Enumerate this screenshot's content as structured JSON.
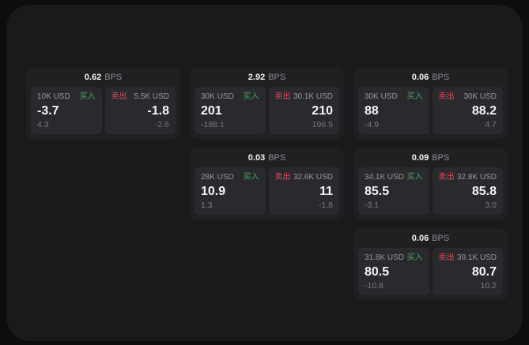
{
  "palette": {
    "page_background": "#0d0d0e",
    "window_background": "#1a1a1c",
    "card_background": "#202023",
    "panel_background": "#2a2a2e",
    "buy_green": "#3cab5f",
    "sell_red": "#de4d5e"
  },
  "cards": [
    {
      "row": 1,
      "col": 1,
      "bps_value": "0.62",
      "bps_unit": "BPS",
      "buy": {
        "amount": "10K USD",
        "side_label": "买入",
        "value": "-3.7",
        "sub_value": "4.3"
      },
      "sell": {
        "amount": "5.5K USD",
        "side_label": "卖出",
        "value": "-1.8",
        "sub_value": "-2.6"
      }
    },
    {
      "row": 1,
      "col": 2,
      "bps_value": "2.92",
      "bps_unit": "BPS",
      "buy": {
        "amount": "30K USD",
        "side_label": "买入",
        "value": "201",
        "sub_value": "-188.1"
      },
      "sell": {
        "amount": "30.1K USD",
        "side_label": "卖出",
        "value": "210",
        "sub_value": "196.5"
      }
    },
    {
      "row": 1,
      "col": 3,
      "bps_value": "0.06",
      "bps_unit": "BPS",
      "buy": {
        "amount": "30K USD",
        "side_label": "买入",
        "value": "88",
        "sub_value": "-4.9"
      },
      "sell": {
        "amount": "30K USD",
        "side_label": "卖出",
        "value": "88.2",
        "sub_value": "4.7"
      }
    },
    {
      "row": 2,
      "col": 2,
      "bps_value": "0.03",
      "bps_unit": "BPS",
      "buy": {
        "amount": "28K USD",
        "side_label": "买入",
        "value": "10.9",
        "sub_value": "1.3"
      },
      "sell": {
        "amount": "32.6K USD",
        "side_label": "卖出",
        "value": "11",
        "sub_value": "-1.8"
      }
    },
    {
      "row": 2,
      "col": 3,
      "bps_value": "0.09",
      "bps_unit": "BPS",
      "buy": {
        "amount": "34.1K USD",
        "side_label": "买入",
        "value": "85.5",
        "sub_value": "-3.1"
      },
      "sell": {
        "amount": "32.8K USD",
        "side_label": "卖出",
        "value": "85.8",
        "sub_value": "3.0"
      }
    },
    {
      "row": 3,
      "col": 3,
      "bps_value": "0.06",
      "bps_unit": "BPS",
      "buy": {
        "amount": "31.8K USD",
        "side_label": "买入",
        "value": "80.5",
        "sub_value": "-10.8"
      },
      "sell": {
        "amount": "39.1K USD",
        "side_label": "卖出",
        "value": "80.7",
        "sub_value": "10.2"
      }
    }
  ]
}
